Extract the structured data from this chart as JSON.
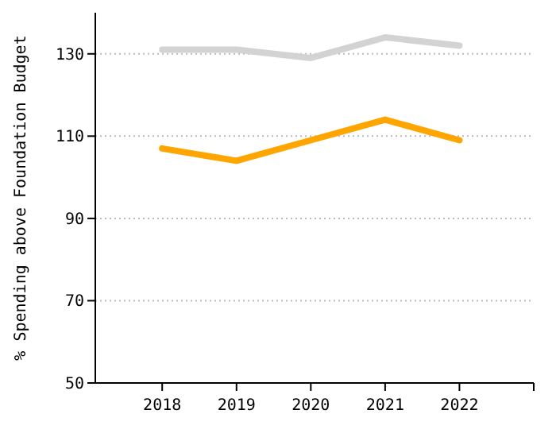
{
  "chart_data": {
    "type": "line",
    "ylabel": "% Spending above Foundation Budget",
    "x": [
      2018,
      2019,
      2020,
      2021,
      2022
    ],
    "series": [
      {
        "color": "#d3d3d3",
        "values": [
          131,
          131,
          129,
          134,
          132
        ]
      },
      {
        "color": "#ffa500",
        "values": [
          107,
          104,
          109,
          114,
          109
        ]
      }
    ],
    "xlim": [
      2017.1,
      2023
    ],
    "xticks": [
      2018,
      2019,
      2020,
      2021,
      2022
    ],
    "ylim": [
      50,
      140
    ],
    "yticks": [
      50,
      70,
      90,
      110,
      130
    ],
    "grid": "y",
    "marker": "none",
    "line_style": "solid"
  }
}
